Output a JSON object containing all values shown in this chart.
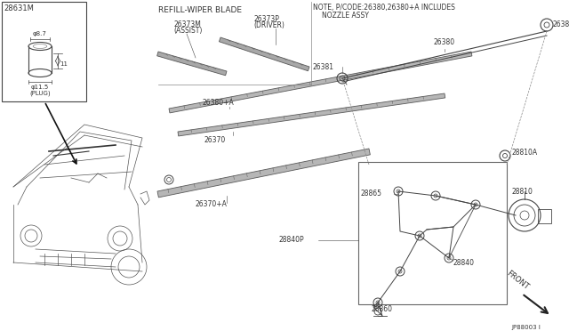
{
  "bg_color": "#ffffff",
  "line_color": "#444444",
  "text_color": "#333333",
  "fig_width": 6.4,
  "fig_height": 3.72,
  "dpi": 100,
  "labels": {
    "part_28631M": "28631M",
    "dim_8_7": "φ8.7",
    "dim_11": "11",
    "dim_11_5": "φ11.5",
    "plug": "(PLUG)",
    "refill_wiper": "REFILL-WIPER BLADE",
    "part_26373M": "26373M",
    "part_26373M_sub": "(ASSIST)",
    "part_26373P": "26373P",
    "part_26373P_sub": "(DRIVER)",
    "note_line1": "NOTE, P/CODE:26380,26380+A INCLUDES",
    "note_line2": "NOZZLE ASSY",
    "part_26380A": "26380+A",
    "part_26370": "26370",
    "part_26370A": "26370+A",
    "part_28840P": "28840P",
    "part_26381": "26381",
    "part_26380": "26380",
    "part_28810A": "28810A",
    "part_28810": "28810",
    "part_28865": "28865",
    "part_28840": "28840",
    "part_28860": "28860",
    "front": "FRONT",
    "diagram_id": "JP88003 I"
  }
}
